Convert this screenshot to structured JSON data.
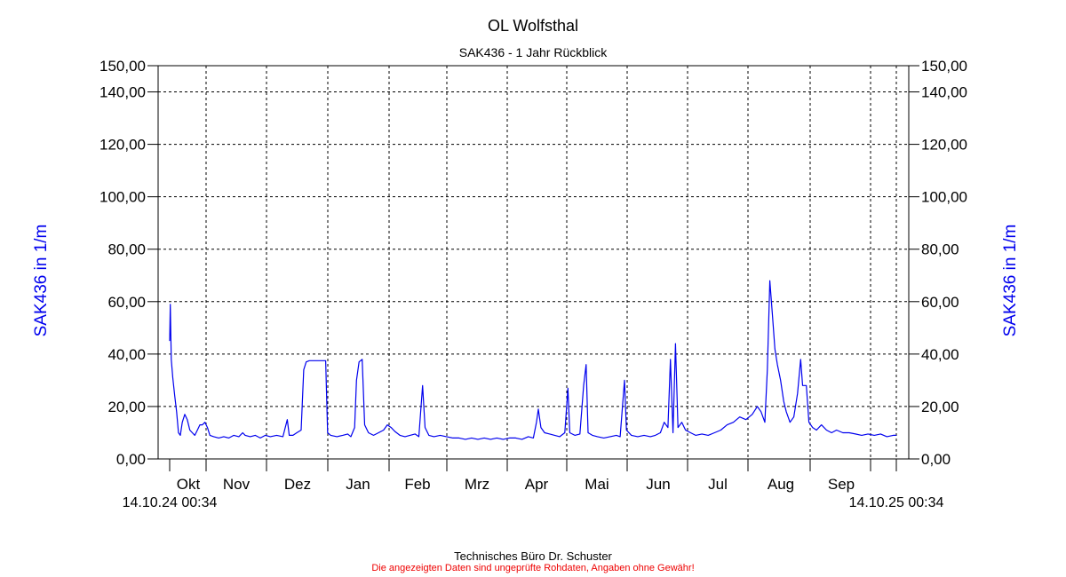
{
  "chart_data": {
    "type": "line",
    "title": "OL Wolfsthal",
    "subtitle": "SAK436 - 1 Jahr Rückblick",
    "ylabel_left": "SAK436 in 1/m",
    "ylabel_right": "SAK436 in 1/m",
    "ylim": [
      0,
      150
    ],
    "ytick_values": [
      0,
      20,
      40,
      60,
      80,
      100,
      120,
      140,
      150
    ],
    "ytick_labels": [
      "0,00",
      "20,00",
      "40,00",
      "60,00",
      "80,00",
      "100,00",
      "120,00",
      "140,00",
      "150,00"
    ],
    "x_start_label": "14.10.24 00:34",
    "x_end_label": "14.10.25 00:34",
    "months": [
      "Okt",
      "Nov",
      "Dez",
      "Jan",
      "Feb",
      "Mrz",
      "Apr",
      "Mai",
      "Jun",
      "Jul",
      "Aug",
      "Sep"
    ],
    "grid": true,
    "line_color": "#0000ee",
    "series": [
      {
        "values": [
          [
            0,
            45
          ],
          [
            0.1,
            59
          ],
          [
            0.25,
            38
          ],
          [
            0.5,
            31
          ],
          [
            0.8,
            24
          ],
          [
            1.1,
            18
          ],
          [
            1.4,
            10
          ],
          [
            1.7,
            9
          ],
          [
            2.0,
            14
          ],
          [
            2.4,
            17
          ],
          [
            2.8,
            15
          ],
          [
            3.2,
            11
          ],
          [
            3.6,
            10
          ],
          [
            4.0,
            9
          ],
          [
            4.4,
            11
          ],
          [
            4.8,
            13
          ],
          [
            5.2,
            13
          ],
          [
            5.6,
            14
          ],
          [
            6.0,
            12
          ],
          [
            6.4,
            9
          ],
          [
            7,
            8.5
          ],
          [
            7.8,
            8
          ],
          [
            8.6,
            8.5
          ],
          [
            9.4,
            8
          ],
          [
            10.2,
            9
          ],
          [
            11,
            8.5
          ],
          [
            11.6,
            10
          ],
          [
            12,
            9
          ],
          [
            12.8,
            8.5
          ],
          [
            13.6,
            9
          ],
          [
            14.4,
            8
          ],
          [
            15.2,
            9
          ],
          [
            16,
            8.5
          ],
          [
            17,
            9
          ],
          [
            18,
            8.5
          ],
          [
            18.7,
            15
          ],
          [
            19,
            9
          ],
          [
            19.6,
            9
          ],
          [
            20.2,
            10
          ],
          [
            20.9,
            11
          ],
          [
            21.3,
            34
          ],
          [
            21.7,
            37
          ],
          [
            22.2,
            37.5
          ],
          [
            23,
            37.5
          ],
          [
            24,
            37.5
          ],
          [
            24.8,
            37.5
          ],
          [
            25.1,
            10
          ],
          [
            25.6,
            9
          ],
          [
            26.6,
            8.5
          ],
          [
            27.5,
            9
          ],
          [
            28.3,
            9.5
          ],
          [
            28.8,
            8.5
          ],
          [
            29.4,
            12
          ],
          [
            29.7,
            30
          ],
          [
            30.1,
            37
          ],
          [
            30.6,
            38
          ],
          [
            31,
            13
          ],
          [
            31.6,
            10
          ],
          [
            32.4,
            9
          ],
          [
            33.2,
            10
          ],
          [
            34,
            11
          ],
          [
            34.6,
            13
          ],
          [
            35.2,
            12
          ],
          [
            35.8,
            10.5
          ],
          [
            36.6,
            9
          ],
          [
            37.4,
            8.5
          ],
          [
            38.2,
            9
          ],
          [
            39,
            9.5
          ],
          [
            39.6,
            8.5
          ],
          [
            40.2,
            28
          ],
          [
            40.6,
            12
          ],
          [
            41.2,
            9
          ],
          [
            42,
            8.5
          ],
          [
            43,
            9
          ],
          [
            44,
            8.5
          ],
          [
            45,
            8
          ],
          [
            46,
            8
          ],
          [
            47,
            7.5
          ],
          [
            48,
            8
          ],
          [
            49,
            7.5
          ],
          [
            50,
            8
          ],
          [
            51,
            7.5
          ],
          [
            52,
            8
          ],
          [
            53,
            7.5
          ],
          [
            54,
            8
          ],
          [
            55,
            8
          ],
          [
            56,
            7.5
          ],
          [
            57,
            8.5
          ],
          [
            57.8,
            8
          ],
          [
            58.3,
            14
          ],
          [
            58.6,
            19
          ],
          [
            59,
            12
          ],
          [
            59.6,
            10
          ],
          [
            60.4,
            9.5
          ],
          [
            61.2,
            9
          ],
          [
            62,
            8.5
          ],
          [
            62.8,
            10
          ],
          [
            63.3,
            27
          ],
          [
            63.6,
            10
          ],
          [
            64.4,
            9
          ],
          [
            65.2,
            9.5
          ],
          [
            65.8,
            28
          ],
          [
            66.2,
            36
          ],
          [
            66.5,
            10
          ],
          [
            67.2,
            9
          ],
          [
            68,
            8.5
          ],
          [
            69,
            8
          ],
          [
            70,
            8.5
          ],
          [
            71,
            9
          ],
          [
            71.6,
            8.5
          ],
          [
            72.3,
            30
          ],
          [
            72.6,
            11
          ],
          [
            73.4,
            9
          ],
          [
            74.4,
            8.5
          ],
          [
            75.4,
            9
          ],
          [
            76.4,
            8.5
          ],
          [
            77.2,
            9
          ],
          [
            78,
            10
          ],
          [
            78.6,
            14
          ],
          [
            79.2,
            12
          ],
          [
            79.6,
            38
          ],
          [
            80,
            10
          ],
          [
            80.4,
            44
          ],
          [
            80.8,
            12
          ],
          [
            81.4,
            14
          ],
          [
            82,
            11
          ],
          [
            82.8,
            10
          ],
          [
            83.6,
            9
          ],
          [
            84.6,
            9.5
          ],
          [
            85.6,
            9
          ],
          [
            86.6,
            10
          ],
          [
            87.6,
            11
          ],
          [
            88.6,
            13
          ],
          [
            89.6,
            14
          ],
          [
            90.6,
            16
          ],
          [
            91.6,
            15
          ],
          [
            92.6,
            17
          ],
          [
            93.4,
            20
          ],
          [
            94,
            18
          ],
          [
            94.6,
            14
          ],
          [
            95,
            34
          ],
          [
            95.4,
            68
          ],
          [
            95.8,
            55
          ],
          [
            96.2,
            42
          ],
          [
            96.6,
            36
          ],
          [
            97.1,
            30
          ],
          [
            97.6,
            22
          ],
          [
            98,
            18
          ],
          [
            98.6,
            14
          ],
          [
            99.2,
            16
          ],
          [
            99.8,
            25
          ],
          [
            100.3,
            38
          ],
          [
            100.6,
            28
          ],
          [
            101.2,
            28
          ],
          [
            101.6,
            14
          ],
          [
            102.2,
            12
          ],
          [
            102.8,
            11
          ],
          [
            103.6,
            13
          ],
          [
            104.4,
            11
          ],
          [
            105.2,
            10
          ],
          [
            106,
            11
          ],
          [
            107,
            10
          ],
          [
            108,
            10
          ],
          [
            109,
            9.5
          ],
          [
            110,
            9
          ],
          [
            111,
            9.5
          ],
          [
            112,
            9
          ],
          [
            113,
            9.5
          ],
          [
            114,
            8.5
          ],
          [
            115,
            9
          ],
          [
            115.5,
            9
          ]
        ]
      }
    ]
  },
  "footer": {
    "credit": "Technisches Büro Dr. Schuster",
    "disclaimer": "Die angezeigten Daten sind ungeprüfte Rohdaten, Angaben ohne Gewähr!"
  }
}
